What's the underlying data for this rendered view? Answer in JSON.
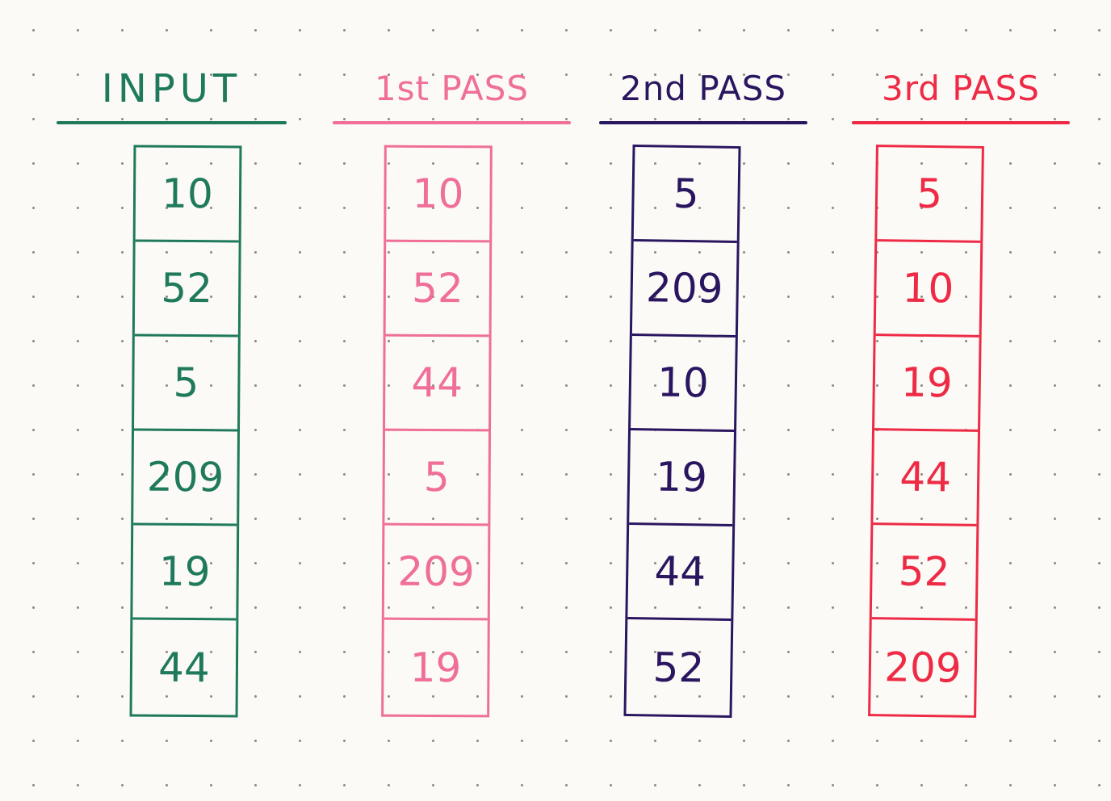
{
  "colors": {
    "paper": "#fbfaf6",
    "dot_grid": "#8f8a82",
    "input": "#1f7a5c",
    "pass_1": "#ef6f98",
    "pass_2": "#2a1660",
    "pass_3": "#ee2a45"
  },
  "columns": [
    {
      "title": "INPUT",
      "color": "#1f7a5c",
      "cells": [
        "10",
        "52",
        "5",
        "209",
        "19",
        "44"
      ]
    },
    {
      "title": "1st PASS",
      "color": "#ef6f98",
      "cells": [
        "10",
        "52",
        "44",
        "5",
        "209",
        "19"
      ]
    },
    {
      "title": "2nd PASS",
      "color": "#2a1660",
      "cells": [
        "5",
        "209",
        "10",
        "19",
        "44",
        "52"
      ]
    },
    {
      "title": "3rd PASS",
      "color": "#ee2a45",
      "cells": [
        "5",
        "10",
        "19",
        "44",
        "52",
        "209"
      ]
    }
  ]
}
